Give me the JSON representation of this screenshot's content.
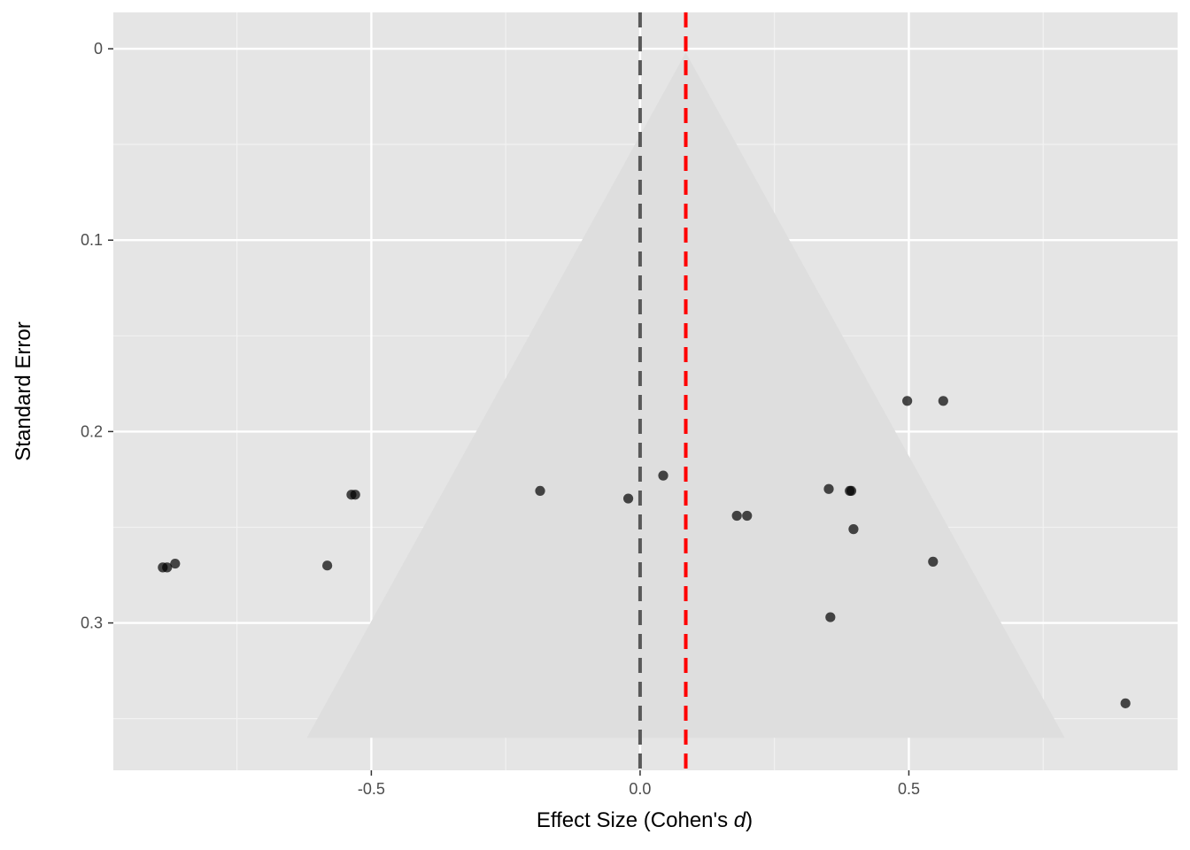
{
  "chart_data": {
    "type": "scatter",
    "xlabel": "Effect Size (Cohen's ",
    "xlabel_italic": "d",
    "xlabel_suffix": ")",
    "ylabel": "Standard Error",
    "x_ticks": [
      -0.5,
      0.0,
      0.5
    ],
    "x_tick_labels": [
      "-0.5",
      "0.0",
      "0.5"
    ],
    "y_ticks": [
      0,
      0.1,
      0.2,
      0.3
    ],
    "y_tick_labels": [
      "0",
      "0.1",
      "0.2",
      "0.3"
    ],
    "xlim": [
      -0.98,
      1.0
    ],
    "ylim": [
      0.377,
      -0.019
    ],
    "y_reversed": true,
    "grid": true,
    "panel_background": "#e5e5e5",
    "funnel": {
      "center": 0.085,
      "apex_se": 0.002,
      "base_se": 0.36,
      "base_left": -0.62,
      "base_right": 0.79,
      "fill": "#dedede"
    },
    "reference_lines": [
      {
        "name": "null",
        "x": 0.0,
        "color": "#595959"
      },
      {
        "name": "pooled",
        "x": 0.085,
        "color": "#ff0000"
      }
    ],
    "points": [
      {
        "x": -0.888,
        "y": 0.271
      },
      {
        "x": -0.88,
        "y": 0.271
      },
      {
        "x": -0.865,
        "y": 0.269
      },
      {
        "x": -0.582,
        "y": 0.27
      },
      {
        "x": -0.537,
        "y": 0.233
      },
      {
        "x": -0.53,
        "y": 0.233
      },
      {
        "x": -0.186,
        "y": 0.231
      },
      {
        "x": -0.022,
        "y": 0.235
      },
      {
        "x": 0.043,
        "y": 0.223
      },
      {
        "x": 0.18,
        "y": 0.244
      },
      {
        "x": 0.199,
        "y": 0.244
      },
      {
        "x": 0.351,
        "y": 0.23
      },
      {
        "x": 0.39,
        "y": 0.231
      },
      {
        "x": 0.393,
        "y": 0.231
      },
      {
        "x": 0.397,
        "y": 0.251
      },
      {
        "x": 0.354,
        "y": 0.297
      },
      {
        "x": 0.497,
        "y": 0.184
      },
      {
        "x": 0.564,
        "y": 0.184
      },
      {
        "x": 0.545,
        "y": 0.268
      },
      {
        "x": 0.903,
        "y": 0.342
      }
    ],
    "point_color": "#000000",
    "point_opacity": 0.7
  }
}
